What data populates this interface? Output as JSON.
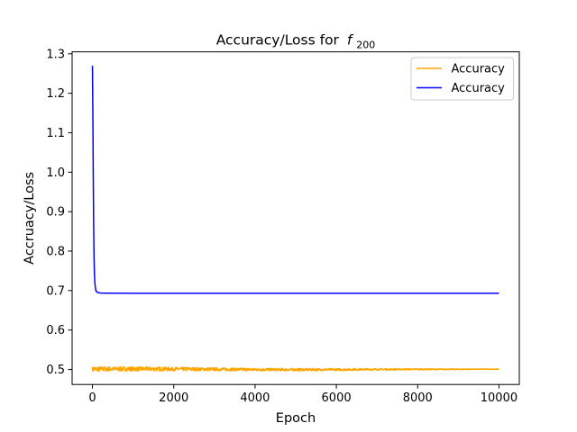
{
  "chart_data": {
    "type": "line",
    "title": "Accuracy/Loss for",
    "title_math": {
      "symbol": "f",
      "subscript": "200"
    },
    "xlabel": "Epoch",
    "ylabel": "Accruacy/Loss",
    "xlim": [
      -500,
      10500
    ],
    "ylim": [
      0.462,
      1.305
    ],
    "xticks": [
      0,
      2000,
      4000,
      6000,
      8000,
      10000
    ],
    "xtick_labels": [
      "0",
      "2000",
      "4000",
      "6000",
      "8000",
      "10000"
    ],
    "yticks": [
      0.5,
      0.6,
      0.7,
      0.8,
      0.9,
      1.0,
      1.1,
      1.2,
      1.3
    ],
    "ytick_labels": [
      "0.5",
      "0.6",
      "0.7",
      "0.8",
      "0.9",
      "1.0",
      "1.1",
      "1.2",
      "1.3"
    ],
    "grid": false,
    "legend_position": "top-right",
    "series": [
      {
        "name": "Accuracy",
        "color": "#ffa500",
        "noise_band": [
          [
            0,
            0.006
          ],
          [
            3000,
            0.004
          ],
          [
            10000,
            0.0005
          ]
        ],
        "points": [
          [
            0,
            0.501
          ],
          [
            1000,
            0.5015
          ],
          [
            2000,
            0.5012
          ],
          [
            3000,
            0.5006
          ],
          [
            4000,
            0.4998
          ],
          [
            5000,
            0.4995
          ],
          [
            6000,
            0.4997
          ],
          [
            7000,
            0.5003
          ],
          [
            8000,
            0.5005
          ],
          [
            9000,
            0.5006
          ],
          [
            10000,
            0.5008
          ]
        ]
      },
      {
        "name": "Accuracy",
        "color": "#0000ff",
        "points": [
          [
            0,
            1.27
          ],
          [
            10,
            1.15
          ],
          [
            20,
            0.99
          ],
          [
            30,
            0.86
          ],
          [
            40,
            0.78
          ],
          [
            50,
            0.74
          ],
          [
            60,
            0.718
          ],
          [
            80,
            0.702
          ],
          [
            100,
            0.697
          ],
          [
            150,
            0.6944
          ],
          [
            200,
            0.6936
          ],
          [
            400,
            0.6933
          ],
          [
            1000,
            0.6932
          ],
          [
            10000,
            0.6931
          ]
        ]
      }
    ]
  }
}
